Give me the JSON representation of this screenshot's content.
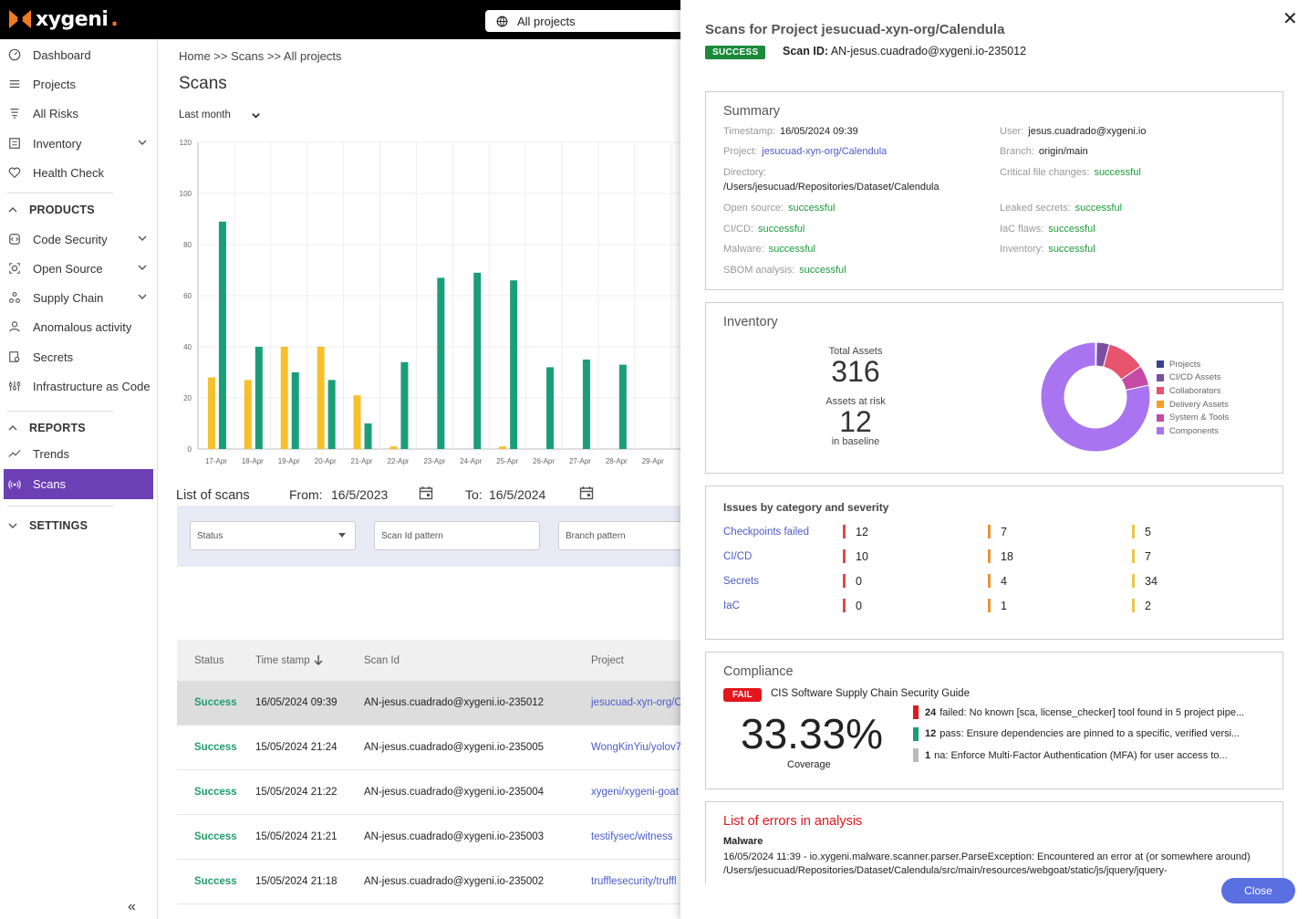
{
  "header": {
    "logo_text": "xygeni",
    "project_select": "All projects"
  },
  "sidebar": {
    "items": [
      {
        "label": "Dashboard",
        "icon": "dashboard-icon"
      },
      {
        "label": "Projects",
        "icon": "list-icon"
      },
      {
        "label": "All Risks",
        "icon": "risk-icon"
      },
      {
        "label": "Inventory",
        "icon": "inventory-icon"
      },
      {
        "label": "Health Check",
        "icon": "heart-icon"
      }
    ],
    "products_label": "PRODUCTS",
    "products": [
      {
        "label": "Code Security"
      },
      {
        "label": "Open Source"
      },
      {
        "label": "Supply Chain"
      },
      {
        "label": "Anomalous activity"
      },
      {
        "label": "Secrets"
      },
      {
        "label": "Infrastructure as Code"
      }
    ],
    "reports_label": "REPORTS",
    "reports": [
      {
        "label": "Trends"
      },
      {
        "label": "Scans"
      }
    ],
    "settings_label": "SETTINGS",
    "collapse": "«"
  },
  "main": {
    "breadcrumb": "Home >> Scans >> All projects",
    "title": "Scans",
    "range": "Last month",
    "list_title": "List of scans",
    "from_label": "From:",
    "from_value": "16/5/2023",
    "to_label": "To:",
    "to_value": "16/5/2024",
    "filters": {
      "status": "Status",
      "scan_id": "Scan Id pattern",
      "branch": "Branch pattern"
    },
    "table": {
      "headers": {
        "status": "Status",
        "timestamp": "Time stamp",
        "scan_id": "Scan Id",
        "project": "Project"
      },
      "rows": [
        {
          "status": "Success",
          "timestamp": "16/05/2024 09:39",
          "scan_id": "AN-jesus.cuadrado@xygeni.io-235012",
          "project": "jesucuad-xyn-org/C"
        },
        {
          "status": "Success",
          "timestamp": "15/05/2024 21:24",
          "scan_id": "AN-jesus.cuadrado@xygeni.io-235005",
          "project": "WongKinYiu/yolov7"
        },
        {
          "status": "Success",
          "timestamp": "15/05/2024 21:22",
          "scan_id": "AN-jesus.cuadrado@xygeni.io-235004",
          "project": "xygeni/xygeni-goat"
        },
        {
          "status": "Success",
          "timestamp": "15/05/2024 21:21",
          "scan_id": "AN-jesus.cuadrado@xygeni.io-235003",
          "project": "testifysec/witness"
        },
        {
          "status": "Success",
          "timestamp": "15/05/2024 21:18",
          "scan_id": "AN-jesus.cuadrado@xygeni.io-235002",
          "project": "trufflesecurity/truffl"
        }
      ]
    }
  },
  "chart_data": {
    "type": "bar",
    "categories": [
      "17-Apr",
      "18-Apr",
      "19-Apr",
      "20-Apr",
      "21-Apr",
      "22-Apr",
      "23-Apr",
      "24-Apr",
      "25-Apr",
      "26-Apr",
      "27-Apr",
      "28-Apr",
      "29-Apr"
    ],
    "series": [
      {
        "color": "#f5c02a",
        "values": [
          28,
          27,
          40,
          40,
          21,
          1,
          0,
          0,
          1,
          0,
          0,
          0,
          0
        ]
      },
      {
        "color": "#1a9e7a",
        "values": [
          89,
          40,
          30,
          27,
          10,
          34,
          67,
          69,
          66,
          32,
          35,
          33,
          0
        ]
      }
    ],
    "yticks": [
      0,
      20,
      40,
      60,
      80,
      100,
      120
    ],
    "ylim": [
      0,
      120
    ],
    "grid": true
  },
  "overlay": {
    "title": "Scans for Project jesucuad-xyn-org/Calendula",
    "status_badge": "SUCCESS",
    "scan_id_label": "Scan ID:",
    "scan_id": "AN-jesus.cuadrado@xygeni.io-235012",
    "summary": {
      "title": "Summary",
      "timestamp_label": "Timestamp:",
      "timestamp": "16/05/2024 09:39",
      "user_label": "User:",
      "user": "jesus.cuadrado@xygeni.io",
      "project_label": "Project:",
      "project": "jesucuad-xyn-org/Calendula",
      "branch_label": "Branch:",
      "branch": "origin/main",
      "directory_label": "Directory:",
      "directory": "/Users/jesucuad/Repositories/Dataset/Calendula",
      "critical_label": "Critical file changes:",
      "critical": "successful",
      "open_source_label": "Open source:",
      "open_source": "successful",
      "leaked_label": "Leaked secrets:",
      "leaked": "successful",
      "cicd_label": "CI/CD:",
      "cicd": "successful",
      "iac_label": "IaC flaws:",
      "iac": "successful",
      "malware_label": "Malware:",
      "malware": "successful",
      "inventory_label": "Inventory:",
      "inventory": "successful",
      "sbom_label": "SBOM analysis:",
      "sbom": "successful"
    },
    "inventory": {
      "title": "Inventory",
      "total_label": "Total Assets",
      "total": "316",
      "risk_label": "Assets at risk",
      "risk": "12",
      "baseline": "in baseline",
      "legend": [
        {
          "label": "Projects",
          "color": "#3b3f8f",
          "value": 1
        },
        {
          "label": "CI/CD Assets",
          "color": "#7a4fa0",
          "value": 12
        },
        {
          "label": "Collaborators",
          "color": "#e8536e",
          "value": 36
        },
        {
          "label": "Delivery Assets",
          "color": "#f59f1e",
          "value": 0
        },
        {
          "label": "System & Tools",
          "color": "#c44aa6",
          "value": 19
        },
        {
          "label": "Components",
          "color": "#a874f0",
          "value": 248
        }
      ]
    },
    "issues": {
      "title": "Issues by category and severity",
      "severity_colors": [
        "#e0484c",
        "#e8953a",
        "#eac84c"
      ],
      "rows": [
        {
          "label": "Checkpoints failed",
          "values": [
            "12",
            "7",
            "5"
          ]
        },
        {
          "label": "CI/CD",
          "values": [
            "10",
            "18",
            "7"
          ]
        },
        {
          "label": "Secrets",
          "values": [
            "0",
            "4",
            "34"
          ]
        },
        {
          "label": "IaC",
          "values": [
            "0",
            "1",
            "2"
          ]
        }
      ]
    },
    "compliance": {
      "title": "Compliance",
      "badge": "FAIL",
      "guide": "CIS Software Supply Chain Security Guide",
      "coverage": "33.33%",
      "coverage_label": "Coverage",
      "lines": [
        {
          "count": "24",
          "text": "failed: No known [sca, license_checker] tool found in 5 project pipe...",
          "color": "#e3161e"
        },
        {
          "count": "12",
          "text": "pass: Ensure dependencies are pinned to a specific, verified versi...",
          "color": "#1a9e7a"
        },
        {
          "count": "1",
          "text": "na: Enforce Multi-Factor Authentication (MFA) for user access to...",
          "color": "#bbbbbb"
        }
      ]
    },
    "errors": {
      "title": "List of errors in analysis",
      "sub": "Malware",
      "text": "16/05/2024 11:39 - io.xygeni.malware.scanner.parser.ParseException: Encountered an error at (or somewhere around) /Users/jesucuad/Repositories/Dataset/Calendula/src/main/resources/webgoat/static/js/jquery/jquery-"
    },
    "close_label": "Close"
  }
}
